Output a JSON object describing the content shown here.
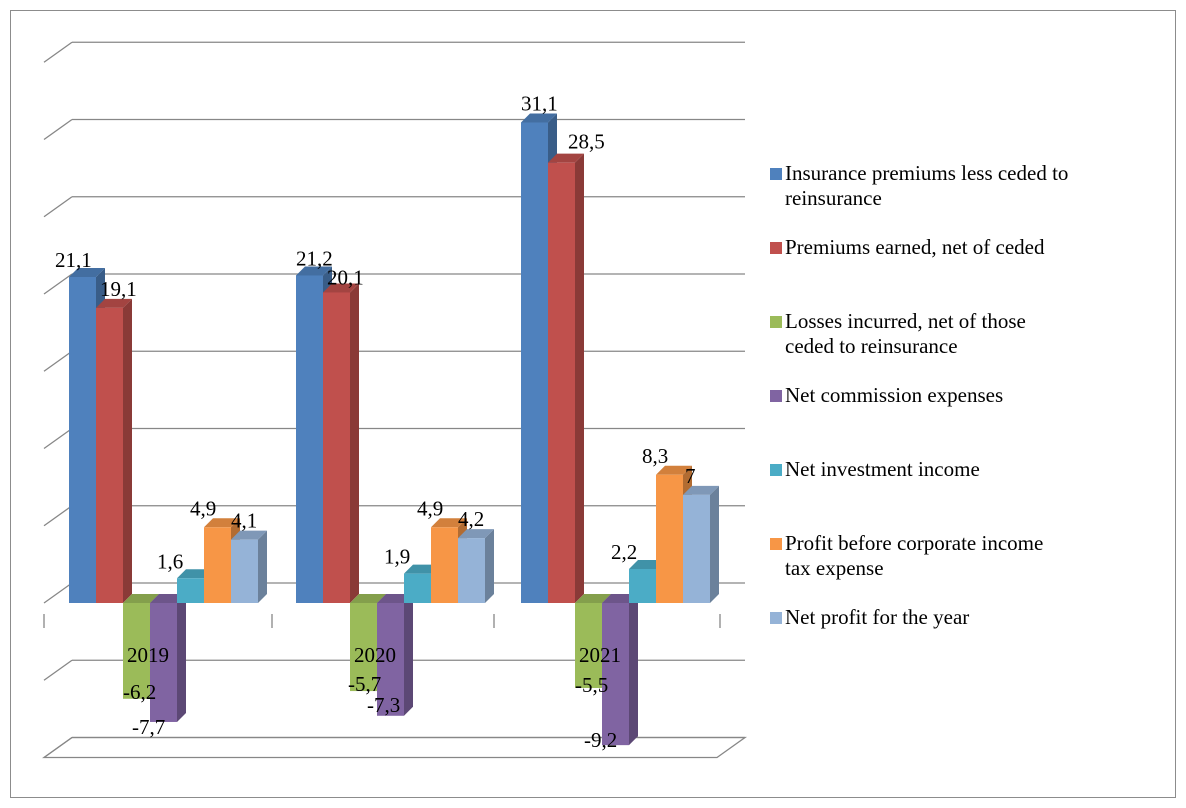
{
  "chart_data": {
    "type": "bar",
    "title": "",
    "xlabel": "",
    "ylabel": "",
    "categories": [
      "2019",
      "2020",
      "2021"
    ],
    "ylim": [
      -10,
      35
    ],
    "grid": true,
    "legend_position": "right",
    "series": [
      {
        "name": "Insurance premiums less ceded to reinsurance",
        "color": "#4F81BD",
        "values": [
          21.1,
          21.2,
          31.1
        ],
        "labels": [
          "21,1",
          "21,2",
          "31,1"
        ]
      },
      {
        "name": "Premiums earned, net of ceded",
        "color": "#C0504D",
        "values": [
          19.1,
          20.1,
          28.5
        ],
        "labels": [
          "19,1",
          "20,1",
          "28,5"
        ]
      },
      {
        "name": "Losses incurred, net of those ceded to reinsurance",
        "color": "#9BBB59",
        "values": [
          -6.2,
          -5.7,
          -5.5
        ],
        "labels": [
          "-6,2",
          "-5,7",
          "-5,5"
        ]
      },
      {
        "name": "Net commission expenses",
        "color": "#8064A2",
        "values": [
          -7.7,
          -7.3,
          -9.2
        ],
        "labels": [
          "-7,7",
          "-7,3",
          "-9,2"
        ]
      },
      {
        "name": "Net investment income",
        "color": "#4BACC6",
        "values": [
          1.6,
          1.9,
          2.2
        ],
        "labels": [
          "1,6",
          "1,9",
          "2,2"
        ]
      },
      {
        "name": "Profit before corporate income tax expense",
        "color": "#F79646",
        "values": [
          4.9,
          4.9,
          8.3
        ],
        "labels": [
          "4,9",
          "4,9",
          "8,3"
        ]
      },
      {
        "name": "Net profit for the year",
        "color": "#95B3D7",
        "values": [
          4.1,
          4.2,
          7
        ],
        "labels": [
          "4,1",
          "4,2",
          "7"
        ]
      }
    ],
    "legend_lines": [
      [
        "Insurance premiums less ceded to",
        "reinsurance"
      ],
      [
        "Premiums earned, net of ceded"
      ],
      [
        "Losses incurred, net of those",
        "ceded to reinsurance"
      ],
      [
        "Net commission expenses"
      ],
      [
        "Net investment income"
      ],
      [
        "Profit before corporate income",
        "tax expense"
      ],
      [
        "Net profit for the year"
      ]
    ]
  }
}
